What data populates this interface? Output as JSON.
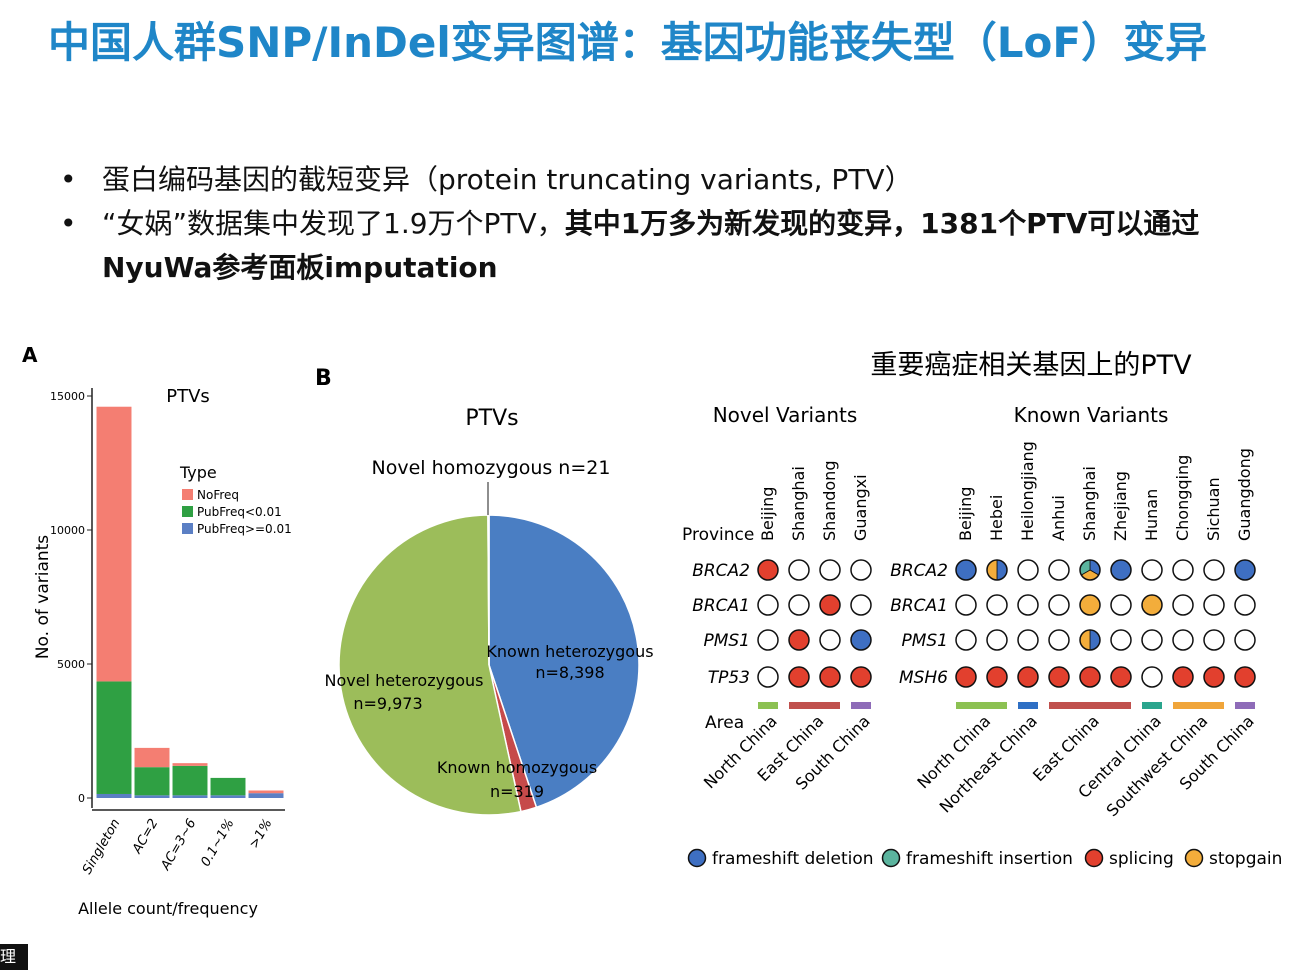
{
  "title": "中国人群SNP/InDel变异图谱：基因功能丧失型（LoF）变异",
  "bullets": [
    {
      "normal": "蛋白编码基因的截短变异（protein truncating variants, PTV）",
      "bold": ""
    },
    {
      "normal": "“女娲”数据集中发现了1.9万个PTV，",
      "bold": "其中1万多为新发现的变异，1381个PTV可以通过NyuWa参考面板imputation"
    }
  ],
  "footer_text": "理所",
  "colors": {
    "title": "#1f86c8",
    "nofreq": "#f47e72",
    "pub_low": "#2fa043",
    "pub_high": "#5b7fc4",
    "pie_novel_het": "#9cbd5a",
    "pie_known_het": "#4a7ec3",
    "pie_known_hom": "#c64a4a",
    "frameshift_deletion": "#3e6fc2",
    "frameshift_insertion": "#5bb49e",
    "splicing": "#e2402e",
    "stopgain": "#f3ad3b"
  },
  "panel_a": {
    "label": "A",
    "chart_data": {
      "type": "bar",
      "title": "PTVs",
      "xlabel": "Allele count/frequency",
      "ylabel": "No. of variants",
      "categories": [
        "Singleton",
        "AC=2",
        "AC=3~6",
        "0.1~1%",
        ">1%"
      ],
      "series": [
        {
          "name": "PubFreq>=0.01",
          "values": [
            150,
            100,
            100,
            100,
            180
          ]
        },
        {
          "name": "PubFreq<0.01",
          "values": [
            4200,
            1050,
            1100,
            650,
            0
          ]
        },
        {
          "name": "NoFreq",
          "values": [
            10250,
            720,
            100,
            0,
            100
          ]
        }
      ],
      "legend_title": "Type",
      "legend_order": [
        "NoFreq",
        "PubFreq<0.01",
        "PubFreq>=0.01"
      ],
      "yticks": [
        0,
        5000,
        10000,
        15000
      ],
      "ylim": [
        0,
        15000
      ],
      "stacked": true,
      "legend_position": "right"
    }
  },
  "panel_b": {
    "label": "B",
    "chart_data": {
      "type": "pie",
      "title": "PTVs",
      "slices": [
        {
          "label": "Known heterozygous",
          "value": 8398,
          "text": "n=8,398"
        },
        {
          "label": "Known homozygous",
          "value": 319,
          "text": "n=319"
        },
        {
          "label": "Novel heterozygous",
          "value": 9973,
          "text": "n=9,973"
        },
        {
          "label": "Novel homozygous",
          "value": 21,
          "text": "n=21"
        }
      ]
    }
  },
  "panel_c": {
    "title": "重要癌症相关基因上的PTV",
    "novel": {
      "title": "Novel Variants",
      "provinces": [
        "Beijing",
        "Shanghai",
        "Shandong",
        "Guangxi"
      ],
      "genes": [
        {
          "name": "BRCA2",
          "cells": [
            [
              "splicing"
            ],
            [],
            [],
            []
          ]
        },
        {
          "name": "BRCA1",
          "cells": [
            [],
            [],
            [
              "splicing"
            ],
            []
          ]
        },
        {
          "name": "PMS1",
          "cells": [
            [],
            [
              "splicing"
            ],
            [],
            [
              "frameshift_deletion"
            ]
          ]
        },
        {
          "name": "TP53",
          "cells": [
            [],
            [
              "splicing"
            ],
            [
              "splicing"
            ],
            [
              "splicing"
            ]
          ]
        }
      ],
      "areas": [
        {
          "name": "North China",
          "span": 1,
          "color": "#8cc152"
        },
        {
          "name": "East China",
          "span": 2,
          "color": "#c0504d"
        },
        {
          "name": "South China",
          "span": 1,
          "color": "#8e6bb8"
        }
      ]
    },
    "known": {
      "title": "Known Variants",
      "provinces": [
        "Beijing",
        "Hebei",
        "Heilongjiang",
        "Anhui",
        "Shanghai",
        "Zhejiang",
        "Hunan",
        "Chongqing",
        "Sichuan",
        "Guangdong"
      ],
      "genes": [
        {
          "name": "BRCA2",
          "cells": [
            [
              "frameshift_deletion"
            ],
            [
              "frameshift_deletion",
              "stopgain"
            ],
            [],
            [],
            [
              "frameshift_deletion",
              "stopgain",
              "frameshift_insertion"
            ],
            [
              "frameshift_deletion"
            ],
            [],
            [],
            [],
            [
              "frameshift_deletion"
            ]
          ]
        },
        {
          "name": "BRCA1",
          "cells": [
            [],
            [],
            [],
            [],
            [
              "stopgain"
            ],
            [],
            [
              "stopgain"
            ],
            [],
            [],
            []
          ]
        },
        {
          "name": "PMS1",
          "cells": [
            [],
            [],
            [],
            [],
            [
              "frameshift_deletion",
              "stopgain"
            ],
            [],
            [],
            [],
            [],
            []
          ]
        },
        {
          "name": "MSH6",
          "cells": [
            [
              "splicing"
            ],
            [
              "splicing"
            ],
            [
              "splicing"
            ],
            [
              "splicing"
            ],
            [
              "splicing"
            ],
            [
              "splicing"
            ],
            [],
            [
              "splicing"
            ],
            [
              "splicing"
            ],
            [
              "splicing"
            ]
          ]
        }
      ],
      "areas": [
        {
          "name": "North China",
          "span": 2,
          "color": "#8cc152"
        },
        {
          "name": "Northeast China",
          "span": 1,
          "color": "#2e6fc4"
        },
        {
          "name": "East China",
          "span": 3,
          "color": "#c0504d"
        },
        {
          "name": "Central China",
          "span": 1,
          "color": "#2aa58d"
        },
        {
          "name": "Southwest China",
          "span": 2,
          "color": "#f0a53a"
        },
        {
          "name": "South China",
          "span": 1,
          "color": "#8e6bb8"
        }
      ]
    },
    "province_label": "Province",
    "area_label": "Area",
    "legend": [
      {
        "key": "frameshift_deletion",
        "label": "frameshift deletion"
      },
      {
        "key": "frameshift_insertion",
        "label": "frameshift insertion"
      },
      {
        "key": "splicing",
        "label": "splicing"
      },
      {
        "key": "stopgain",
        "label": "stopgain"
      }
    ]
  }
}
